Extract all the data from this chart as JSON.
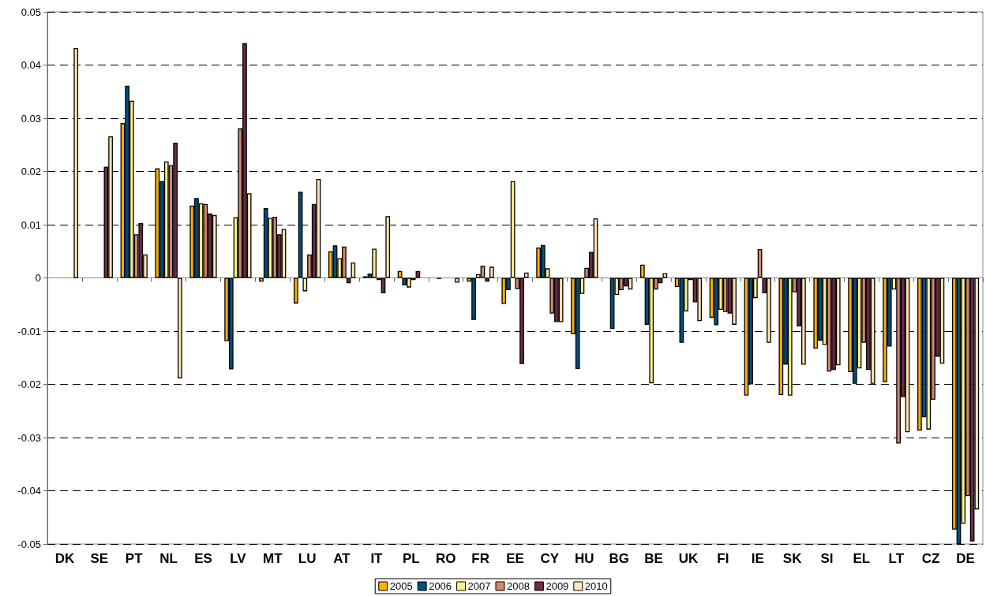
{
  "chart_data": {
    "type": "bar",
    "categories": [
      "DK",
      "SE",
      "PT",
      "NL",
      "ES",
      "LV",
      "MT",
      "LU",
      "AT",
      "IT",
      "PL",
      "RO",
      "FR",
      "EE",
      "CY",
      "HU",
      "BG",
      "BE",
      "UK",
      "FI",
      "IE",
      "SK",
      "SI",
      "EL",
      "LT",
      "CZ",
      "DE"
    ],
    "series": [
      {
        "name": "2005",
        "color": "#f5b000",
        "values": [
          null,
          null,
          0.0291,
          0.0206,
          0.0136,
          -0.0119,
          -0.0007,
          -0.0048,
          0.005,
          0.0003,
          0.0013,
          null,
          -0.0007,
          -0.0049,
          0.0057,
          -0.0106,
          null,
          0.0025,
          -0.0017,
          -0.0075,
          -0.0221,
          -0.022,
          -0.0133,
          -0.0177,
          -0.0196,
          -0.0287,
          -0.0473
        ]
      },
      {
        "name": "2006",
        "color": "#00507f",
        "values": [
          null,
          null,
          0.0361,
          0.0182,
          0.015,
          -0.0172,
          0.0131,
          0.0162,
          0.0061,
          0.0008,
          -0.0014,
          -0.0002,
          -0.0079,
          -0.0023,
          0.0062,
          -0.0171,
          -0.0096,
          -0.0088,
          -0.0122,
          -0.0089,
          -0.02,
          -0.0163,
          -0.0118,
          -0.0199,
          -0.0129,
          -0.0262,
          -0.05
        ]
      },
      {
        "name": "2007",
        "color": "#fff18a",
        "values": [
          null,
          null,
          0.0333,
          0.0219,
          0.014,
          0.0114,
          0.0113,
          -0.0025,
          0.0037,
          0.0055,
          -0.0018,
          null,
          0.0007,
          0.0182,
          0.0018,
          -0.003,
          -0.0032,
          -0.0198,
          -0.0063,
          -0.006,
          -0.0038,
          -0.0221,
          -0.0126,
          -0.017,
          -0.0022,
          -0.0285,
          -0.0462
        ]
      },
      {
        "name": "2008",
        "color": "#d4876b",
        "values": [
          null,
          null,
          0.0082,
          0.0212,
          0.0139,
          0.0281,
          0.0115,
          0.0044,
          0.0059,
          -0.0004,
          -0.0004,
          null,
          0.0023,
          -0.0021,
          -0.0067,
          0.0019,
          -0.0023,
          -0.0022,
          -0.0004,
          -0.0064,
          0.0054,
          -0.0027,
          -0.0176,
          -0.0122,
          -0.0311,
          -0.0229,
          -0.041
        ]
      },
      {
        "name": "2009",
        "color": "#6b2d45",
        "values": [
          null,
          0.0209,
          0.0103,
          0.0254,
          0.0121,
          0.0441,
          0.0082,
          0.0139,
          -0.001,
          -0.0029,
          0.0013,
          null,
          -0.0007,
          -0.0162,
          -0.0083,
          0.0049,
          -0.0016,
          -0.001,
          -0.0046,
          -0.0067,
          -0.0029,
          -0.0091,
          -0.0173,
          -0.0173,
          -0.0224,
          -0.0148,
          -0.0495
        ]
      },
      {
        "name": "2010",
        "color": "#ffe4b5",
        "values": [
          0.0432,
          0.0266,
          0.0044,
          -0.0189,
          0.0118,
          0.0159,
          0.0092,
          0.0186,
          0.0029,
          0.0116,
          null,
          -0.0009,
          0.0021,
          0.001,
          -0.0083,
          0.0112,
          -0.0022,
          0.0009,
          -0.0081,
          -0.0088,
          -0.0122,
          -0.0163,
          -0.0164,
          -0.0199,
          -0.029,
          -0.0161,
          -0.0435
        ]
      }
    ],
    "ylim": [
      -0.05,
      0.05
    ],
    "yticks": [
      -0.05,
      -0.04,
      -0.03,
      -0.02,
      -0.01,
      0,
      0.01,
      0.02,
      0.03,
      0.04,
      0.05
    ],
    "grid": "y",
    "legend": "bottom"
  }
}
